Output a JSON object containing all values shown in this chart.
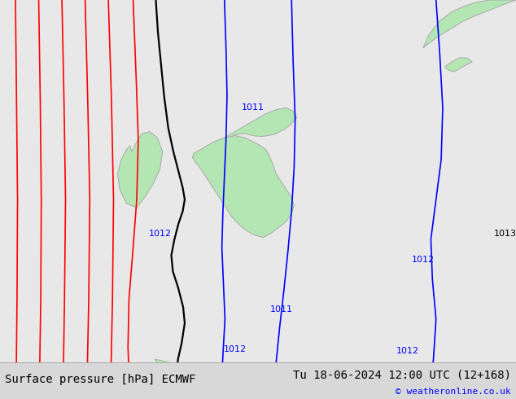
{
  "title_left": "Surface pressure [hPa] ECMWF",
  "title_right": "Tu 18-06-2024 12:00 UTC (12+168)",
  "copyright": "© weatheronline.co.uk",
  "bg_color": "#e8e8e8",
  "land_color": "#b3e6b3",
  "coast_color": "#aaaaaa",
  "bottom_bar_color": "#d8d8d8",
  "title_fontsize": 10,
  "copyright_fontsize": 8,
  "red_isobar_color": "#ff0000",
  "black_isobar_color": "#000000",
  "blue_isobar_color": "#0000ff"
}
